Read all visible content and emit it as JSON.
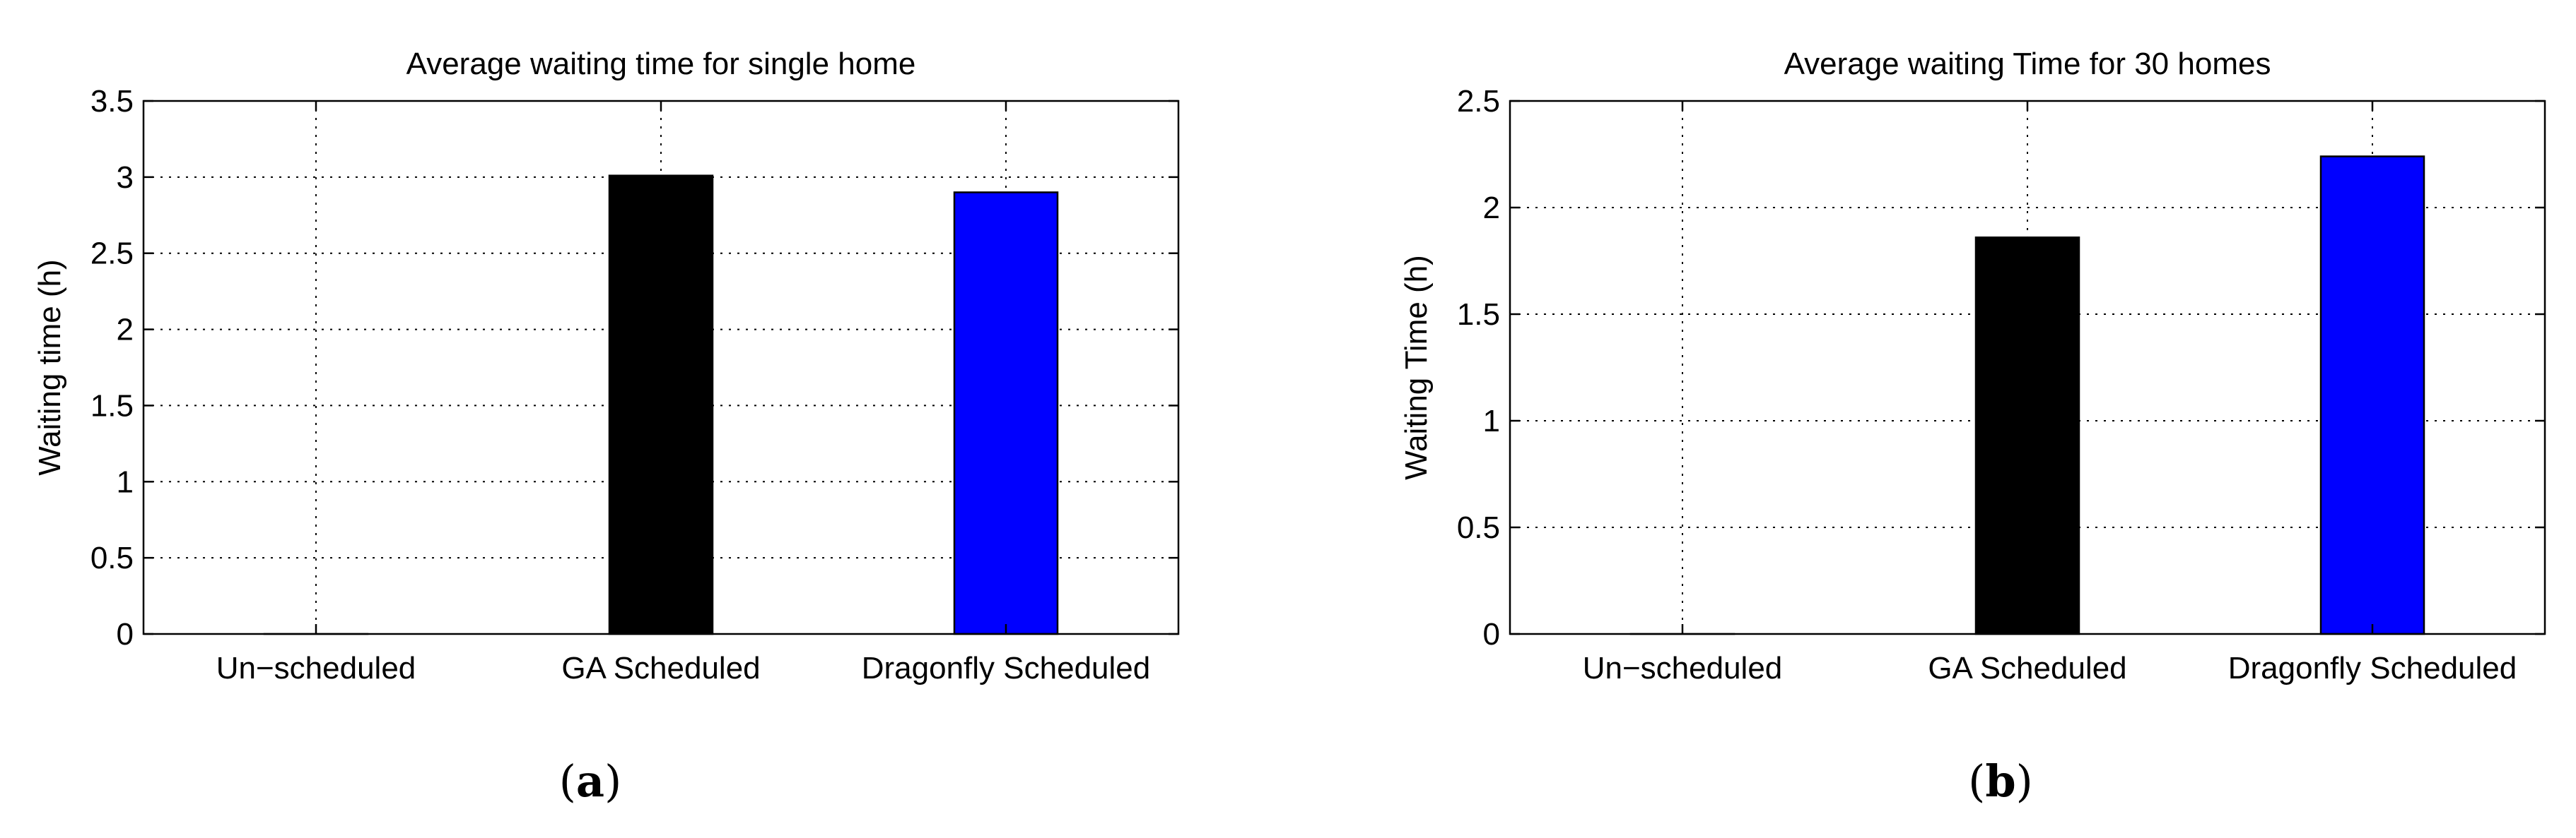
{
  "chart_data": [
    {
      "type": "bar",
      "title": "Average waiting time for single home",
      "xlabel": "",
      "ylabel": "Waiting time (h)",
      "categories": [
        "Un−scheduled",
        "GA Scheduled",
        "Dragonfly Scheduled"
      ],
      "values": [
        0,
        3.01,
        2.9
      ],
      "colors": [
        "#0000ff",
        "#000000",
        "#0000ff"
      ],
      "ylim": [
        0,
        3.5
      ],
      "yticks": [
        0,
        0.5,
        1,
        1.5,
        2,
        2.5,
        3,
        3.5
      ],
      "ytick_labels": [
        "0",
        "0.5",
        "1",
        "1.5",
        "2",
        "2.5",
        "3",
        "3.5"
      ],
      "grid": true,
      "panel_letter": "a"
    },
    {
      "type": "bar",
      "title": "Average waiting Time for 30 homes",
      "xlabel": "",
      "ylabel": "Waiting Time (h)",
      "categories": [
        "Un−scheduled",
        "GA Scheduled",
        "Dragonfly Scheduled"
      ],
      "values": [
        0,
        1.86,
        2.24
      ],
      "colors": [
        "#0000ff",
        "#000000",
        "#0000ff"
      ],
      "ylim": [
        0,
        2.5
      ],
      "yticks": [
        0,
        0.5,
        1,
        1.5,
        2,
        2.5
      ],
      "ytick_labels": [
        "0",
        "0.5",
        "1",
        "1.5",
        "2",
        "2.5"
      ],
      "grid": true,
      "panel_letter": "b"
    }
  ]
}
